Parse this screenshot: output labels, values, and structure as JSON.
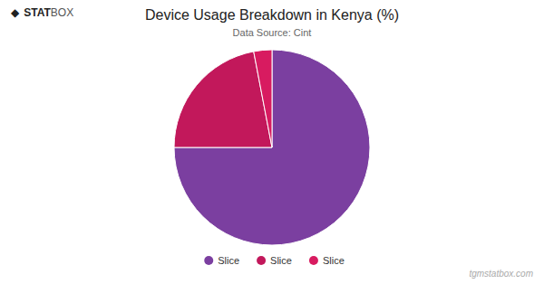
{
  "chart_data": {
    "type": "pie",
    "title": "Device Usage Breakdown in Kenya (%)",
    "subtitle": "Data Source: Cint",
    "categories": [
      "Slice",
      "Slice",
      "Slice"
    ],
    "values": [
      75,
      22,
      3
    ],
    "colors": [
      "#7B3FA0",
      "#C2185B",
      "#D81B60"
    ],
    "legend": "bottom",
    "annotations": [
      "◆",
      "STAT",
      "BOX",
      "tgmstatbox.com"
    ]
  }
}
